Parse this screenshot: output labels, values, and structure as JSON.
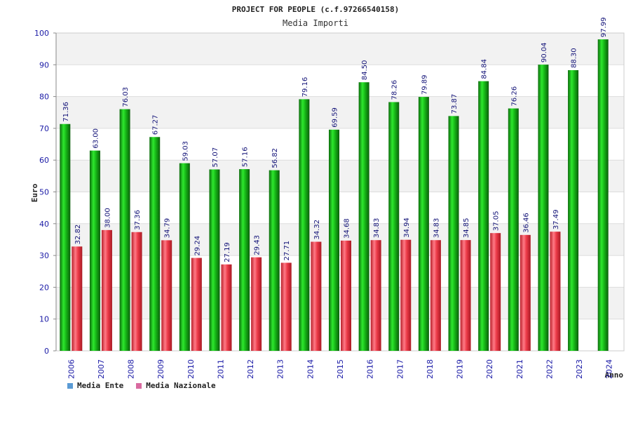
{
  "chart_data": {
    "type": "bar",
    "title": "PROJECT FOR PEOPLE (c.f.97266540158)",
    "subtitle": "Media Importi",
    "xlabel": "Anno",
    "ylabel": "Euro",
    "ylim": [
      0,
      100
    ],
    "yticks": [
      0,
      10,
      20,
      30,
      40,
      50,
      60,
      70,
      80,
      90,
      100
    ],
    "grid": true,
    "legend_position": "bottom-left",
    "categories": [
      "2006",
      "2007",
      "2008",
      "2009",
      "2010",
      "2011",
      "2012",
      "2013",
      "2014",
      "2015",
      "2016",
      "2017",
      "2018",
      "2019",
      "2020",
      "2021",
      "2022",
      "2023",
      "2024"
    ],
    "series": [
      {
        "name": "Media Ente",
        "color": "#1a9e1a",
        "legend_color": "#5b9bd5",
        "values": [
          71.36,
          63.0,
          76.03,
          67.27,
          59.03,
          57.07,
          57.16,
          56.82,
          79.16,
          69.59,
          84.5,
          78.26,
          79.89,
          73.87,
          84.84,
          76.26,
          90.04,
          88.3,
          97.99
        ],
        "labels": [
          "71.36",
          "63.00",
          "76.03",
          "67.27",
          "59.03",
          "57.07",
          "57.16",
          "56.82",
          "79.16",
          "69.59",
          "84.50",
          "78.26",
          "79.89",
          "73.87",
          "84.84",
          "76.26",
          "90.04",
          "88.30",
          "97.99"
        ]
      },
      {
        "name": "Media Nazionale",
        "color": "#e0303a",
        "legend_color": "#d96aa0",
        "values": [
          32.82,
          38.0,
          37.36,
          34.79,
          29.24,
          27.19,
          29.43,
          27.71,
          34.32,
          34.68,
          34.83,
          34.94,
          34.83,
          34.85,
          37.05,
          36.46,
          37.49,
          null,
          null
        ],
        "labels": [
          "32.82",
          "38.00",
          "37.36",
          "34.79",
          "29.24",
          "27.19",
          "29.43",
          "27.71",
          "34.32",
          "34.68",
          "34.83",
          "34.94",
          "34.83",
          "34.85",
          "37.05",
          "36.46",
          "37.49",
          "",
          ""
        ]
      }
    ]
  }
}
